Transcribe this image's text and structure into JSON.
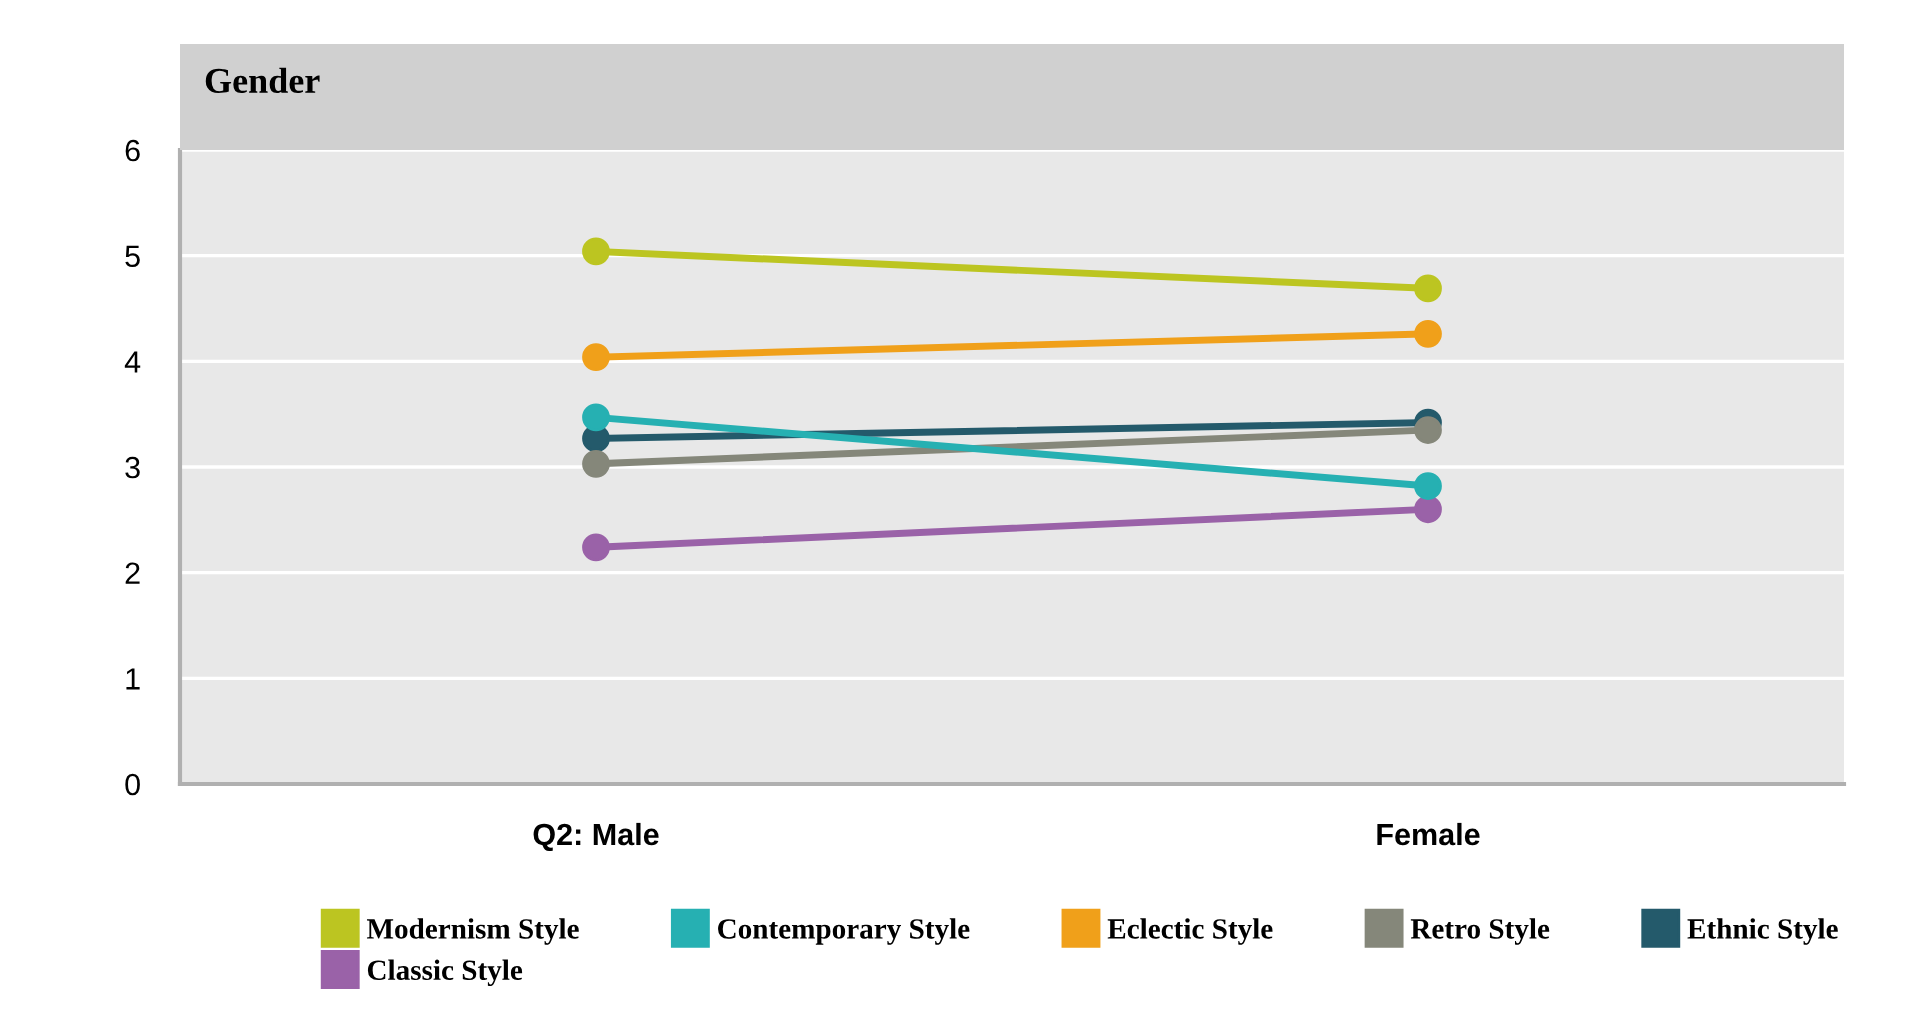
{
  "chart_data": {
    "type": "line",
    "title": "Gender",
    "categories": [
      "Q2: Male",
      "Female"
    ],
    "series": [
      {
        "name": "Modernism Style",
        "color": "#bcc521",
        "values": [
          5.04,
          4.69
        ]
      },
      {
        "name": "Contemporary Style",
        "color": "#26b0b2",
        "values": [
          3.47,
          2.82
        ]
      },
      {
        "name": "Eclectic Style",
        "color": "#f0a01a",
        "values": [
          4.04,
          4.26
        ]
      },
      {
        "name": "Retro Style",
        "color": "#85877a",
        "values": [
          3.03,
          3.35
        ]
      },
      {
        "name": "Ethnic Style",
        "color": "#245a6b",
        "values": [
          3.27,
          3.42
        ]
      },
      {
        "name": "Classic Style",
        "color": "#9a62a8",
        "values": [
          2.24,
          2.6
        ]
      }
    ],
    "ylim": [
      0,
      6
    ],
    "yticks": [
      0,
      1,
      2,
      3,
      4,
      5,
      6
    ],
    "grid": "y",
    "legend": "bottom",
    "marker": "circle",
    "line_style": "solid"
  }
}
